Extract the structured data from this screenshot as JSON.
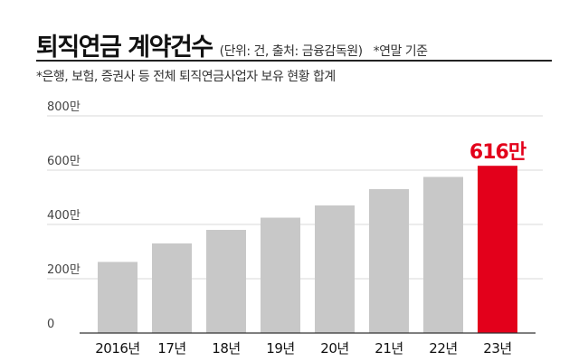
{
  "header": {
    "title": "퇴직연금 계약건수",
    "unit_note": "(단위: 건, 출처: 금융감독원)",
    "right_note": "*연말 기준",
    "sub_note": "*은행, 보험, 증권사 등 전체 퇴직연금사업자 보유 현황 합계"
  },
  "colors": {
    "bar": "#c8c8c8",
    "highlight": "#e3001b",
    "grid": "#d9d9d9",
    "axis": "#333333"
  },
  "chart_data": {
    "type": "bar",
    "categories": [
      "2016년",
      "17년",
      "18년",
      "19년",
      "20년",
      "21년",
      "22년",
      "23년"
    ],
    "values": [
      262,
      330,
      380,
      425,
      470,
      530,
      575,
      616
    ],
    "ylim": [
      0,
      800
    ],
    "yticks": [
      0,
      200,
      400,
      600,
      800
    ],
    "ytick_labels": [
      "0",
      "200만",
      "400만",
      "600만",
      "800만"
    ],
    "grid": true,
    "highlight_index": 7,
    "data_labels": [
      {
        "index": 7,
        "text": "616만"
      }
    ]
  }
}
